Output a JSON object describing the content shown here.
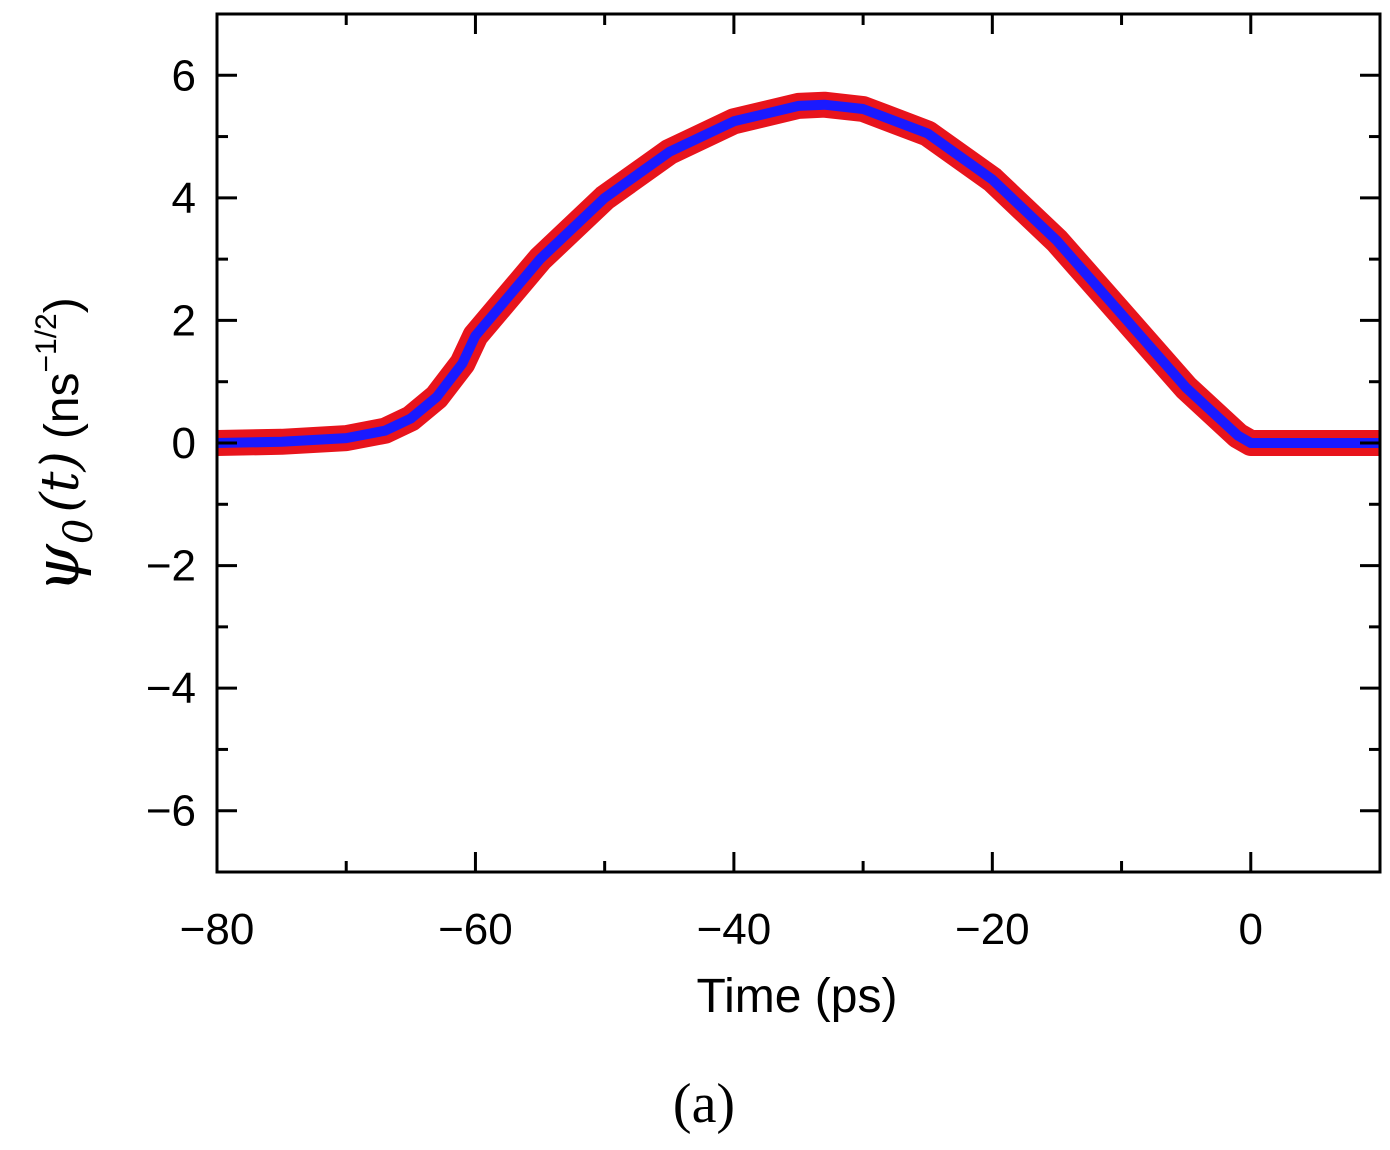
{
  "chart_data": {
    "type": "line",
    "title": "",
    "xlabel": "Time (ps)",
    "ylabel": {
      "symbol": "ψ",
      "subscript": "0",
      "argument": "(t)",
      "unit_prefix": "(ns",
      "unit_exponent": "−1/2",
      "unit_suffix": ")"
    },
    "xlim": [
      -80,
      10
    ],
    "ylim": [
      -7,
      7
    ],
    "xticks": [
      -80,
      -60,
      -40,
      -20,
      0
    ],
    "xtick_labels": [
      "−80",
      "−60",
      "−40",
      "−20",
      "0"
    ],
    "yticks": [
      -6,
      -4,
      -2,
      0,
      2,
      4,
      6
    ],
    "ytick_labels": [
      "−6",
      "−4",
      "−2",
      "0",
      "2",
      "4",
      "6"
    ],
    "grid": false,
    "panel_label": "(a)",
    "series": [
      {
        "color": "#e8141c",
        "style": "thick-band",
        "x": [
          -80,
          -75,
          -70,
          -67,
          -65,
          -63,
          -61,
          -60,
          -55,
          -50,
          -45,
          -40,
          -35,
          -33,
          -30,
          -25,
          -20,
          -15,
          -10,
          -5,
          -1,
          0,
          5,
          10
        ],
        "y": [
          0,
          0.02,
          0.08,
          0.2,
          0.4,
          0.75,
          1.3,
          1.75,
          3.0,
          4.0,
          4.75,
          5.25,
          5.5,
          5.52,
          5.45,
          5.05,
          4.3,
          3.3,
          2.1,
          0.9,
          0.12,
          0,
          0,
          0
        ]
      },
      {
        "color": "#1a1aff",
        "style": "line",
        "x": [
          -80,
          -75,
          -70,
          -67,
          -65,
          -63,
          -61,
          -60,
          -55,
          -50,
          -45,
          -40,
          -35,
          -33,
          -30,
          -25,
          -20,
          -15,
          -10,
          -5,
          -1,
          0,
          5,
          10
        ],
        "y": [
          0,
          0.02,
          0.08,
          0.2,
          0.4,
          0.75,
          1.3,
          1.75,
          3.0,
          4.0,
          4.75,
          5.25,
          5.5,
          5.52,
          5.45,
          5.05,
          4.3,
          3.3,
          2.1,
          0.9,
          0.12,
          0,
          0,
          0
        ]
      }
    ]
  }
}
